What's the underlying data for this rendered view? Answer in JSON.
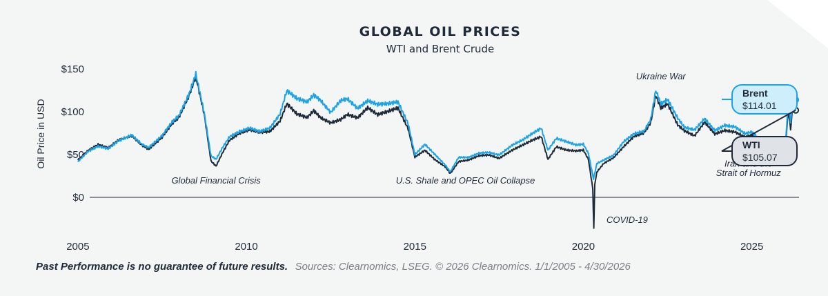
{
  "colors": {
    "background": "#f4f5f5",
    "brent": "#1aa3e6",
    "wti": "#1f2a38",
    "brent_callout_fill": "#cdeefa",
    "wti_callout_fill": "#dfe2e6",
    "zero_line": "#1f2a38",
    "text": "#1f2a38",
    "muted_text": "#7a7f86"
  },
  "chart_data": {
    "type": "line",
    "title": "GLOBAL OIL PRICES",
    "subtitle": "WTI and Brent Crude",
    "ylabel": "Oil Price in USD",
    "xlabel": "",
    "xlim": [
      2004.9,
      2026.4
    ],
    "ylim": [
      -40,
      160
    ],
    "y_ticks": [
      0,
      50,
      100,
      150
    ],
    "y_tick_labels": [
      "$0",
      "$50",
      "$100",
      "$150"
    ],
    "x_ticks": [
      2005,
      2010,
      2015,
      2020,
      2025
    ],
    "x_tick_labels": [
      "2005",
      "2010",
      "2015",
      "2020",
      "2025"
    ],
    "grid": false,
    "series": [
      {
        "name": "Brent",
        "color": "#1aa3e6",
        "x": [
          2005.0,
          2005.3,
          2005.6,
          2005.9,
          2006.2,
          2006.6,
          2006.9,
          2007.1,
          2007.5,
          2007.8,
          2008.0,
          2008.3,
          2008.5,
          2008.75,
          2008.95,
          2009.1,
          2009.3,
          2009.5,
          2009.8,
          2010.1,
          2010.4,
          2010.7,
          2011.0,
          2011.2,
          2011.5,
          2011.8,
          2012.0,
          2012.2,
          2012.5,
          2012.8,
          2013.0,
          2013.3,
          2013.6,
          2013.9,
          2014.2,
          2014.5,
          2014.8,
          2015.0,
          2015.3,
          2015.6,
          2015.9,
          2016.05,
          2016.3,
          2016.6,
          2016.9,
          2017.2,
          2017.5,
          2017.9,
          2018.2,
          2018.5,
          2018.75,
          2018.95,
          2019.2,
          2019.5,
          2019.8,
          2020.0,
          2020.15,
          2020.3,
          2020.4,
          2020.6,
          2020.9,
          2021.2,
          2021.5,
          2021.8,
          2022.0,
          2022.15,
          2022.3,
          2022.5,
          2022.8,
          2023.0,
          2023.3,
          2023.6,
          2023.9,
          2024.2,
          2024.5,
          2024.8,
          2025.0,
          2025.3,
          2025.6,
          2025.9,
          2026.0,
          2026.08,
          2026.15,
          2026.22,
          2026.3
        ],
        "y": [
          42,
          54,
          60,
          57,
          66,
          73,
          62,
          58,
          72,
          88,
          95,
          120,
          143,
          98,
          48,
          44,
          58,
          70,
          76,
          80,
          76,
          80,
          96,
          123,
          114,
          110,
          118,
          112,
          98,
          112,
          114,
          103,
          112,
          108,
          109,
          111,
          86,
          50,
          62,
          50,
          38,
          30,
          47,
          47,
          52,
          53,
          50,
          62,
          68,
          76,
          82,
          56,
          70,
          66,
          62,
          63,
          52,
          22,
          40,
          44,
          50,
          66,
          75,
          78,
          92,
          126,
          110,
          115,
          93,
          82,
          79,
          92,
          78,
          84,
          82,
          74,
          76,
          65,
          66,
          62,
          64,
          110,
          86,
          118,
          114
        ]
      },
      {
        "name": "WTI",
        "color": "#1f2a38",
        "x": [
          2005.0,
          2005.3,
          2005.6,
          2005.9,
          2006.2,
          2006.6,
          2006.9,
          2007.1,
          2007.5,
          2007.8,
          2008.0,
          2008.3,
          2008.5,
          2008.75,
          2008.95,
          2009.1,
          2009.3,
          2009.5,
          2009.8,
          2010.1,
          2010.4,
          2010.7,
          2011.0,
          2011.2,
          2011.5,
          2011.8,
          2012.0,
          2012.2,
          2012.5,
          2012.8,
          2013.0,
          2013.3,
          2013.6,
          2013.9,
          2014.2,
          2014.5,
          2014.8,
          2015.0,
          2015.3,
          2015.6,
          2015.9,
          2016.05,
          2016.3,
          2016.6,
          2016.9,
          2017.2,
          2017.5,
          2017.9,
          2018.2,
          2018.5,
          2018.75,
          2018.95,
          2019.2,
          2019.5,
          2019.8,
          2020.0,
          2020.15,
          2020.28,
          2020.31,
          2020.34,
          2020.4,
          2020.6,
          2020.9,
          2021.2,
          2021.5,
          2021.8,
          2022.0,
          2022.15,
          2022.3,
          2022.5,
          2022.8,
          2023.0,
          2023.3,
          2023.6,
          2023.9,
          2024.2,
          2024.5,
          2024.8,
          2025.0,
          2025.3,
          2025.6,
          2025.9,
          2026.0,
          2026.08,
          2026.15,
          2026.22,
          2026.3
        ],
        "y": [
          44,
          55,
          62,
          58,
          67,
          72,
          61,
          56,
          70,
          86,
          93,
          118,
          140,
          96,
          42,
          36,
          52,
          66,
          74,
          78,
          75,
          76,
          88,
          108,
          96,
          92,
          100,
          92,
          86,
          90,
          96,
          92,
          104,
          96,
          100,
          104,
          80,
          47,
          55,
          44,
          36,
          28,
          42,
          44,
          49,
          50,
          46,
          56,
          62,
          68,
          72,
          45,
          60,
          56,
          55,
          56,
          45,
          10,
          -37,
          15,
          30,
          40,
          47,
          60,
          72,
          76,
          88,
          120,
          105,
          110,
          85,
          78,
          72,
          88,
          74,
          78,
          76,
          70,
          72,
          62,
          62,
          58,
          60,
          102,
          78,
          110,
          105
        ]
      }
    ],
    "annotations": [
      {
        "text": "Global Financial Crisis",
        "x": 2009.1,
        "y": 16
      },
      {
        "text": "U.S. Shale and OPEC Oil Collapse",
        "x": 2016.5,
        "y": 16
      },
      {
        "text": "COVID-19",
        "x": 2021.3,
        "y": -30
      },
      {
        "text": "Ukraine War",
        "x": 2022.3,
        "y": 138
      },
      {
        "text": "Iran and the",
        "x": 2024.9,
        "y": 36
      },
      {
        "text": "Strait of Hormuz",
        "x": 2024.9,
        "y": 25
      }
    ],
    "callouts": [
      {
        "name": "Brent",
        "value": "$114.01"
      },
      {
        "name": "WTI",
        "value": "$105.07"
      }
    ]
  },
  "footer": {
    "disclaimer": "Past Performance is no guarantee of future results.",
    "sources": "Sources: Clearnomics, LSEG. © 2026 Clearnomics. 1/1/2005 - 4/30/2026"
  }
}
